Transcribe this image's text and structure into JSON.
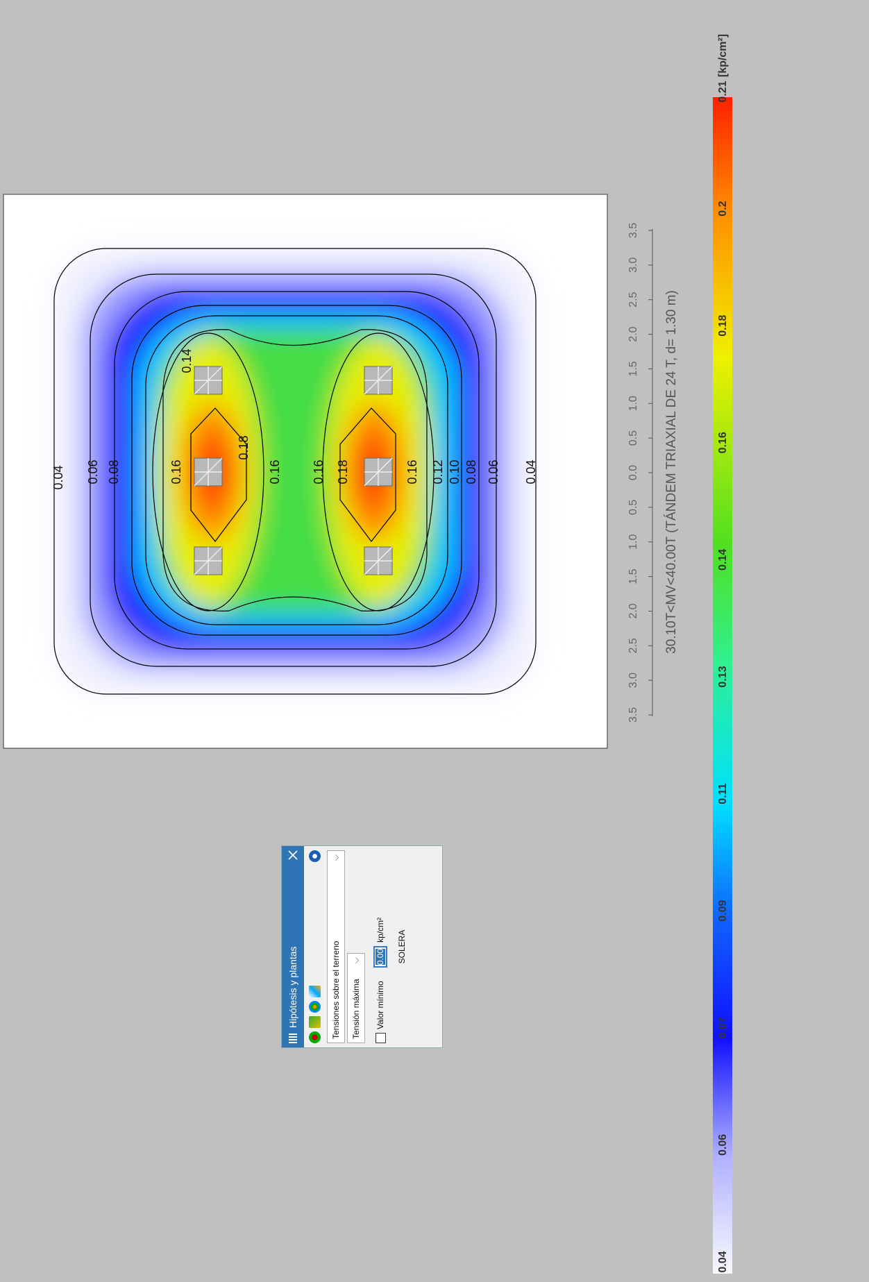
{
  "dialog": {
    "title": "Hipótesis y plantas",
    "result_type": "Tensiones sobre el terreno",
    "measure": "Tensión máxima",
    "min_value_label": "Valor mínimo",
    "min_value": "0.00",
    "unit": "kp/cm²",
    "element": "SOLERA"
  },
  "plot": {
    "contour_labels": [
      "0.04",
      "0.06",
      "0.08",
      "0.14",
      "0.16",
      "0.18",
      "0.16",
      "0.16",
      "0.18",
      "0.16",
      "0.12",
      "0.10",
      "0.08",
      "0.06",
      "0.04"
    ],
    "scale_ticks": [
      "3.5",
      "3.0",
      "2.5",
      "2.0",
      "1.5",
      "1.0",
      "0.5",
      "0.0",
      "0.5",
      "1.0",
      "1.5",
      "2.0",
      "2.5",
      "3.0",
      "3.5"
    ],
    "scale_caption": "30.10T<MV<40.00T (TÁNDEM TRIAXIAL DE 24 T, d= 1.30 m)"
  },
  "colorbar": {
    "unit": "[kp/cm²]",
    "labels": [
      "0.04",
      "0.06",
      "0.07",
      "0.09",
      "0.11",
      "0.13",
      "0.14",
      "0.16",
      "0.18",
      "0.2",
      "0.21"
    ]
  }
}
